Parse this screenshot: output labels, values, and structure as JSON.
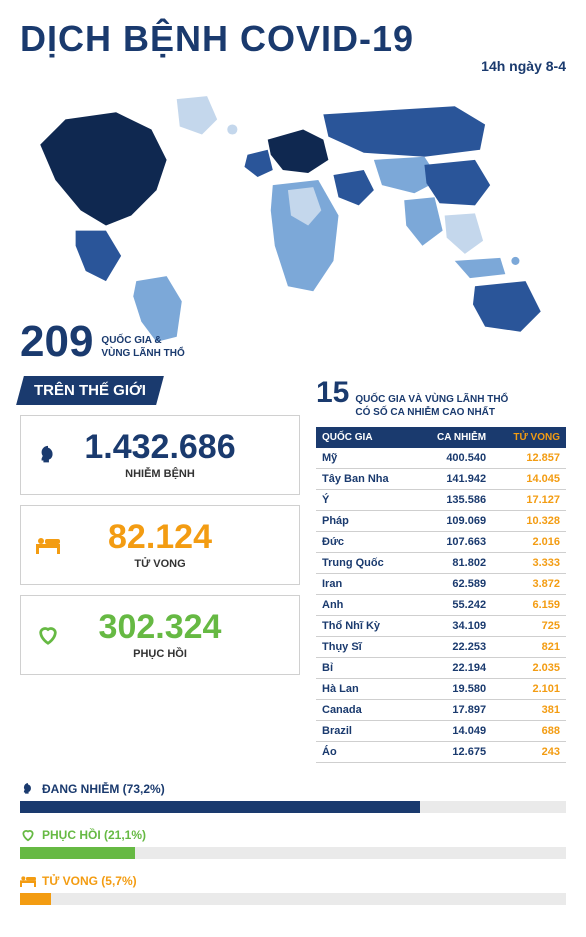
{
  "header": {
    "title": "DỊCH BỆNH COVID-19",
    "subtitle": "14h ngày 8-4",
    "title_color": "#1a3a6e"
  },
  "countries_total": {
    "number": "209",
    "label_line1": "QUỐC GIA &",
    "label_line2": "VÙNG LÃNH THỔ"
  },
  "world_header": "TRÊN THẾ GIỚI",
  "stats": {
    "infected": {
      "value": "1.432.686",
      "label": "NHIỄM BỆNH",
      "color": "#1a3a6e",
      "icon": "head"
    },
    "deaths": {
      "value": "82.124",
      "label": "TỬ VONG",
      "color": "#f39c12",
      "icon": "bed"
    },
    "recovered": {
      "value": "302.324",
      "label": "PHỤC HỒI",
      "color": "#66b943",
      "icon": "heart"
    }
  },
  "top15": {
    "number": "15",
    "label_line1": "QUỐC GIA VÀ VÙNG LÃNH THỔ",
    "label_line2": "CÓ SỐ CA NHIỄM CAO NHẤT",
    "headers": {
      "country": "QUỐC GIA",
      "cases": "CA NHIỄM",
      "deaths": "TỬ VONG"
    },
    "rows": [
      {
        "country": "Mỹ",
        "cases": "400.540",
        "deaths": "12.857"
      },
      {
        "country": "Tây Ban Nha",
        "cases": "141.942",
        "deaths": "14.045"
      },
      {
        "country": "Ý",
        "cases": "135.586",
        "deaths": "17.127"
      },
      {
        "country": "Pháp",
        "cases": "109.069",
        "deaths": "10.328"
      },
      {
        "country": "Đức",
        "cases": "107.663",
        "deaths": "2.016"
      },
      {
        "country": "Trung Quốc",
        "cases": "81.802",
        "deaths": "3.333"
      },
      {
        "country": "Iran",
        "cases": "62.589",
        "deaths": "3.872"
      },
      {
        "country": "Anh",
        "cases": "55.242",
        "deaths": "6.159"
      },
      {
        "country": "Thổ Nhĩ Kỳ",
        "cases": "34.109",
        "deaths": "725"
      },
      {
        "country": "Thụy Sĩ",
        "cases": "22.253",
        "deaths": "821"
      },
      {
        "country": "Bỉ",
        "cases": "22.194",
        "deaths": "2.035"
      },
      {
        "country": "Hà Lan",
        "cases": "19.580",
        "deaths": "2.101"
      },
      {
        "country": "Canada",
        "cases": "17.897",
        "deaths": "381"
      },
      {
        "country": "Brazil",
        "cases": "14.049",
        "deaths": "688"
      },
      {
        "country": "Áo",
        "cases": "12.675",
        "deaths": "243"
      }
    ]
  },
  "bars": [
    {
      "label": "ĐANG NHIỄM (73,2%)",
      "pct": 73.2,
      "color": "#1a3a6e",
      "icon": "head"
    },
    {
      "label": "PHỤC HỒI (21,1%)",
      "pct": 21.1,
      "color": "#66b943",
      "icon": "heart"
    },
    {
      "label": "TỬ VONG (5,7%)",
      "pct": 5.7,
      "color": "#f39c12",
      "icon": "bed"
    }
  ],
  "colors": {
    "primary": "#1a3a6e",
    "orange": "#f39c12",
    "green": "#66b943",
    "map_dark": "#0f2850",
    "map_mid": "#2a5599",
    "map_light": "#7ca8d8",
    "map_pale": "#c4d7ec",
    "track": "#eaeaea"
  }
}
